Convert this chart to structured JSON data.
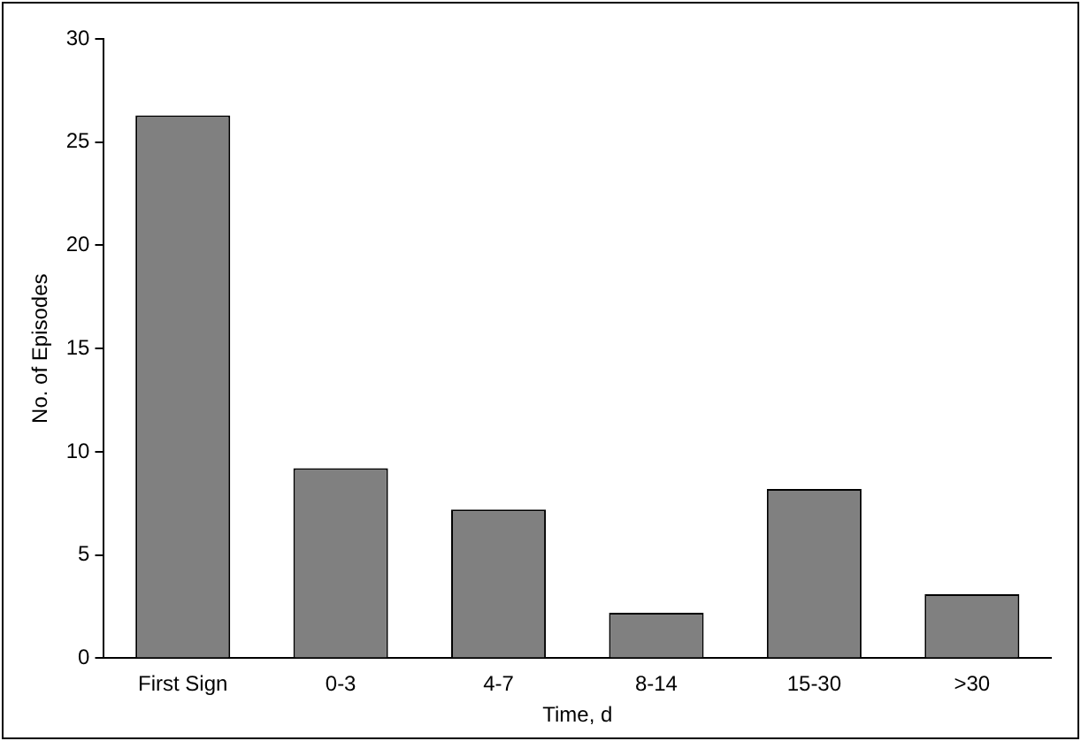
{
  "chart_data": {
    "type": "bar",
    "xlabel": "Time, d",
    "ylabel": "No. of Episodes",
    "categories": [
      "First Sign",
      "0-3",
      "4-7",
      "8-14",
      "15-30",
      ">30"
    ],
    "values": [
      26.3,
      9.2,
      7.2,
      2.2,
      8.2,
      3.1
    ],
    "color": "#808080",
    "ylim": [
      0,
      30
    ],
    "yticks": [
      0,
      5,
      10,
      15,
      20,
      25,
      30
    ],
    "grid": false,
    "legend": false
  }
}
